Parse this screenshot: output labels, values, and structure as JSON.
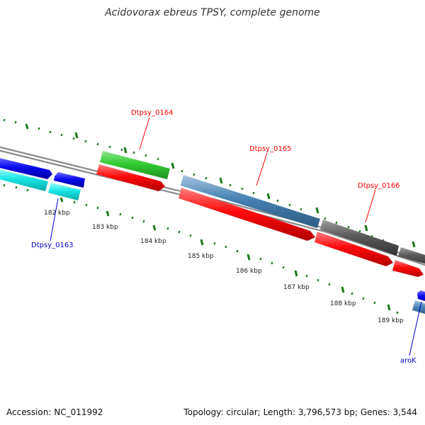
{
  "title": "Acidovorax ebreus TPSY, complete genome",
  "footer": {
    "accession": "Accession: NC_011992",
    "summary": "Topology: circular; Length: 3,796,573 bp; Genes: 3,544"
  },
  "ticks": [
    "182 kbp",
    "183 kbp",
    "184 kbp",
    "185 kbp",
    "186 kbp",
    "187 kbp",
    "188 kbp",
    "189 kbp"
  ],
  "gene_labels": [
    {
      "text": "Dtpsy_0164",
      "color": "#ff0000"
    },
    {
      "text": "Dtpsy_0165",
      "color": "#ff0000"
    },
    {
      "text": "Dtpsy_0166",
      "color": "#ff0000"
    },
    {
      "text": "Dtpsy_0163",
      "color": "#0000cc"
    },
    {
      "text": "aroK",
      "color": "#0000cc"
    }
  ],
  "colors": {
    "backbone": "#9a9a9a",
    "tick_marks": "#1a7a1a",
    "blue_gene": "#0a0af0",
    "cyan_gene": "#19e6e6",
    "green_gene": "#33cc33",
    "red_gene": "#ff0a0a",
    "steelblue_gene": "#4682b4",
    "gray_gene": "#5a5a5a"
  }
}
